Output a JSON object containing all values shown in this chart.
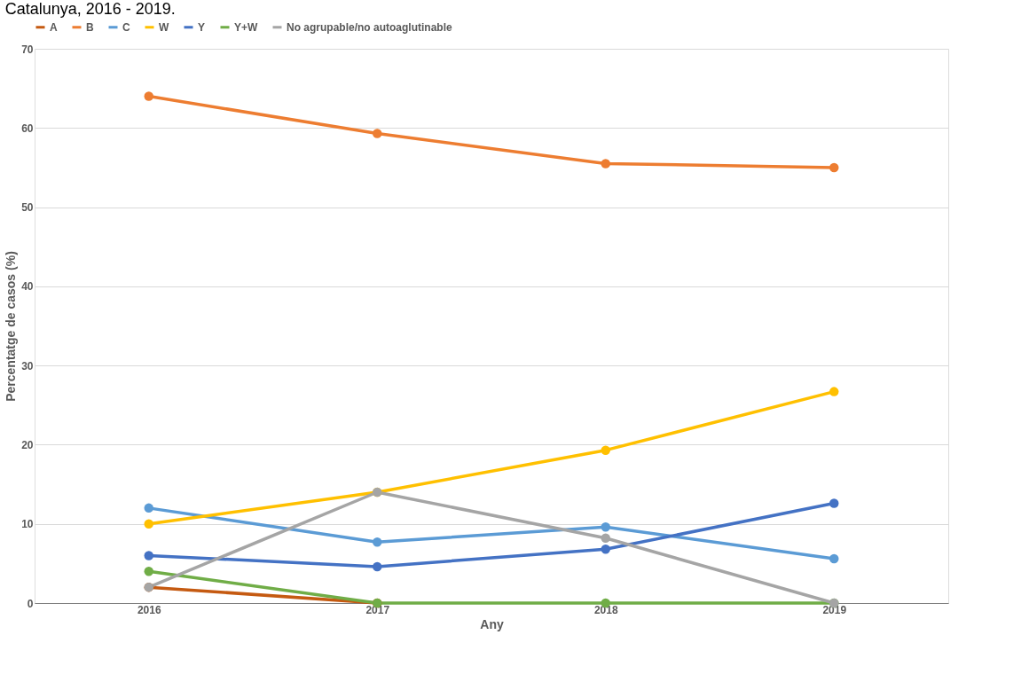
{
  "chart_data": {
    "type": "line",
    "title": "Catalunya, 2016 - 2019.",
    "xlabel": "Any",
    "ylabel": "Percentatge de casos  (%)",
    "categories": [
      "2016",
      "2017",
      "2018",
      "2019"
    ],
    "series": [
      {
        "name": "A",
        "color": "#c55a11",
        "values": [
          2,
          0,
          null,
          null
        ]
      },
      {
        "name": "B",
        "color": "#ed7d31",
        "values": [
          64,
          59.3,
          55.5,
          55.0
        ]
      },
      {
        "name": "C",
        "color": "#5b9bd5",
        "values": [
          12,
          7.7,
          9.6,
          5.6
        ]
      },
      {
        "name": "W",
        "color": "#ffc000",
        "values": [
          10,
          14,
          19.3,
          26.7
        ]
      },
      {
        "name": "Y",
        "color": "#4472c4",
        "values": [
          6,
          4.6,
          6.8,
          12.6
        ]
      },
      {
        "name": "Y+W",
        "color": "#70ad47",
        "values": [
          4,
          0,
          0,
          0
        ]
      },
      {
        "name": "No agrupable/no autoaglutinable",
        "color": "#a5a5a5",
        "values": [
          2,
          14,
          8.2,
          0
        ]
      }
    ],
    "ylim": [
      0,
      70
    ],
    "yticks": [
      0,
      10,
      20,
      30,
      40,
      50,
      60,
      70
    ],
    "grid": "y",
    "legend": "top",
    "marker": "circle",
    "line_style": "solid"
  }
}
